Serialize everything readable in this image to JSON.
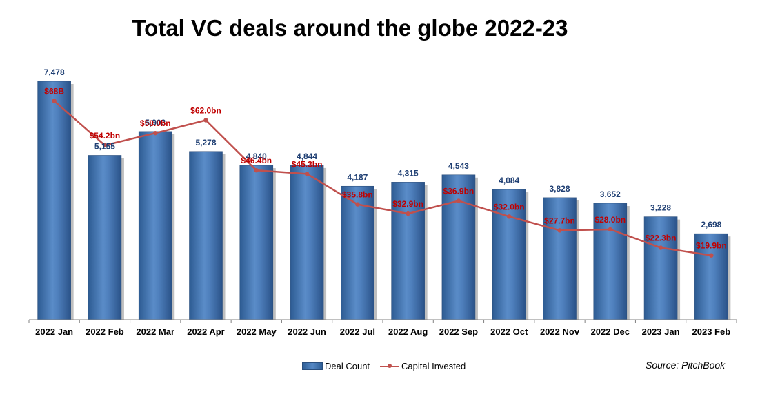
{
  "chart_data": {
    "type": "bar",
    "title": "Total VC deals around the globe 2022-23",
    "categories": [
      "2022 Jan",
      "2022 Feb",
      "2022 Mar",
      "2022 Apr",
      "2022 May",
      "2022 Jun",
      "2022 Jul",
      "2022 Aug",
      "2022 Sep",
      "2022 Oct",
      "2022 Nov",
      "2022 Dec",
      "2023 Jan",
      "2023 Feb"
    ],
    "series": [
      {
        "name": "Deal Count",
        "type": "bar",
        "color": "#4f81bd",
        "values": [
          7478,
          5155,
          5903,
          5278,
          4840,
          4844,
          4187,
          4315,
          4543,
          4084,
          3828,
          3652,
          3228,
          2698
        ],
        "labels": [
          "7,478",
          "5,155",
          "5,903",
          "5,278",
          "4,840",
          "4,844",
          "4,187",
          "4,315",
          "4,543",
          "4,084",
          "3,828",
          "3,652",
          "3,228",
          "2,698"
        ]
      },
      {
        "name": "Capital Invested",
        "type": "line",
        "color": "#c0504d",
        "values": [
          68,
          54.2,
          58.0,
          62.0,
          46.4,
          45.3,
          35.8,
          32.9,
          36.9,
          32.0,
          27.7,
          28.0,
          22.3,
          19.9
        ],
        "labels": [
          "$68B",
          "$54.2bn",
          "$58.0bn",
          "$62.0bn",
          "$46.4bn",
          "$45.3bn",
          "$35.8bn",
          "$32.9bn",
          "$36.9bn",
          "$32.0bn",
          "$27.7bn",
          "$28.0bn",
          "$22.3bn",
          "$19.9bn"
        ]
      }
    ],
    "xlabel": "",
    "ylabel": "",
    "ylim": [
      0,
      7478
    ],
    "grid": false,
    "legend": "bottom-center"
  },
  "source": "Source: PitchBook"
}
